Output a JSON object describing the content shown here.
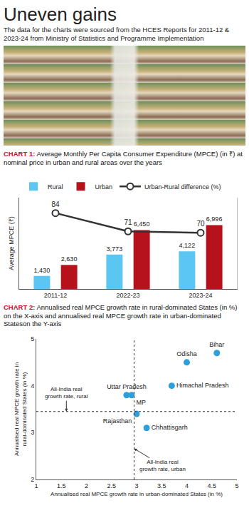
{
  "header": {
    "title": "Uneven gains",
    "subtitle": "The data for the charts were sourced from the HCES Reports for 2011-12 & 2023-24 from Ministry of Statistics and Programme Implementation"
  },
  "chart_data": [
    {
      "type": "bar",
      "label": "CHART 1:",
      "title": "Average Monthly Per Capita Consumer Expenditure (MPCE) (in ₹) at nominal price in urban and rural areas over the years",
      "categories": [
        "2011-12",
        "2022-23",
        "2023-24"
      ],
      "ylabel": "Average MPCE (₹)",
      "series": [
        {
          "name": "Rural",
          "color": "#5bc6f2",
          "values": [
            1430,
            3773,
            4122
          ],
          "value_labels": [
            "1,430",
            "3,773",
            "4,122"
          ]
        },
        {
          "name": "Urban",
          "color": "#b5121b",
          "values": [
            2630,
            6450,
            6996
          ],
          "value_labels": [
            "2,630",
            "6,450",
            "6,996"
          ]
        },
        {
          "name": "Urban-Rural difference (%)",
          "type": "line",
          "axis": "y2",
          "color": "#333333",
          "marker": "circle",
          "values": [
            84,
            71,
            70
          ]
        }
      ],
      "ylim": [
        0,
        10000
      ],
      "y2lim": [
        30,
        95
      ],
      "tick_labels": "x",
      "data_labels": true,
      "grid": false,
      "legend": "top left"
    },
    {
      "type": "scatter",
      "label": "CHART 2:",
      "title": "Annualised real MPCE growth rate in rural-dominated States (in %) on the X-axis and annualised real MPCE growth rate in urban-dominated Stateson the Y-axis",
      "xlabel": "Annualised real MPCE growth rate in urban-dominated States (in %)",
      "ylabel": "Annualised real MPCE growth rate in rural-dominated States (in %)",
      "labels": [
        "Odisha",
        "Bihar",
        "Himachal Pradesh",
        "Uttar Pradesh",
        "MP",
        "Rajasthan",
        "Chhattisgarh"
      ],
      "x": [
        4.0,
        4.6,
        3.7,
        2.8,
        2.9,
        3.0,
        3.2
      ],
      "values": [
        4.5,
        4.7,
        4.0,
        3.8,
        3.8,
        3.4,
        3.1
      ],
      "color": "#2e9fd9",
      "marker": "circle",
      "xlim": [
        1,
        5
      ],
      "ylim": [
        2,
        5
      ],
      "xticks": [
        1,
        1.5,
        2,
        2.5,
        3,
        3.5,
        4,
        4.5,
        5
      ],
      "yticks": [
        2,
        3,
        4,
        5
      ],
      "reference_lines": [
        {
          "axis": "y",
          "value": 3.45,
          "label": "All-India real growth rate, rural",
          "line_style": "dotted"
        },
        {
          "axis": "x",
          "value": 2.95,
          "label": "All-India real growth rate, urban",
          "line_style": "dotted"
        }
      ],
      "grid": false
    }
  ]
}
